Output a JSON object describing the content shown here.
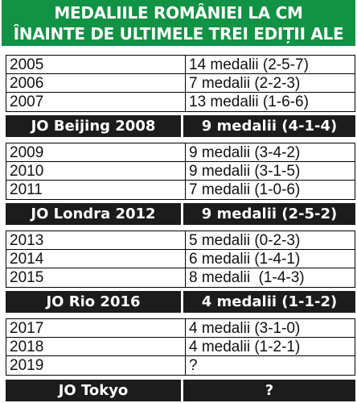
{
  "header": {
    "line1": "MEDALIILE ROMÂNIEI LA CM",
    "line2": "ÎNAINTE DE ULTIMELE TREI EDIȚII ALE JO"
  },
  "groups": [
    {
      "rows": [
        {
          "year": "2005",
          "medals": "14 medalii (2-5-7)"
        },
        {
          "year": "2006",
          "medals": "7 medalii (2-2-3)"
        },
        {
          "year": "2007",
          "medals": "13 medalii (1-6-6)"
        }
      ],
      "olympics": {
        "event": "JO Beijing 2008",
        "medals": "9 medalii (4-1-4)"
      }
    },
    {
      "rows": [
        {
          "year": "2009",
          "medals": "9 medalii (3-4-2)"
        },
        {
          "year": "2010",
          "medals": "9 medalii (3-1-5)"
        },
        {
          "year": "2011",
          "medals": "7 medalii (1-0-6)"
        }
      ],
      "olympics": {
        "event": "JO Londra 2012",
        "medals": "9 medalii (2-5-2)"
      }
    },
    {
      "rows": [
        {
          "year": "2013",
          "medals": "5 medalii (0-2-3)"
        },
        {
          "year": "2014",
          "medals": "6 medalii (1-4-1)"
        },
        {
          "year": "2015",
          "medals": "8 medalii  (1-4-3)"
        }
      ],
      "olympics": {
        "event": "JO Rio 2016",
        "medals": "4 medalii (1-1-2)"
      }
    },
    {
      "rows": [
        {
          "year": "2017",
          "medals": "4 medalii (3-1-0)"
        },
        {
          "year": "2018",
          "medals": "4 medalii (1-2-1)"
        },
        {
          "year": "2019",
          "medals": "?"
        }
      ],
      "olympics": {
        "event": "JO Tokyo",
        "medals": "?"
      }
    }
  ],
  "colors": {
    "header_bg": "#119244",
    "band_bg": "#1c1c1c"
  }
}
